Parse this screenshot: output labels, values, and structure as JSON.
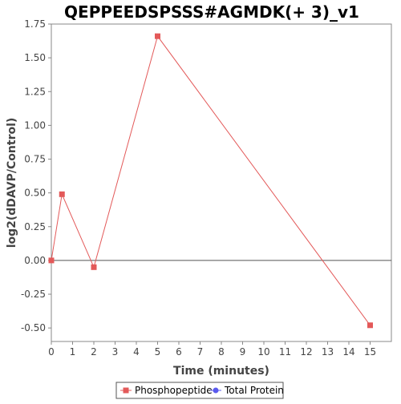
{
  "chart_data": {
    "type": "line",
    "title": "QEPPEEDSPSSS#AGMDK(+ 3)_v1",
    "xlabel": "Time (minutes)",
    "ylabel": "log2(dDAVP/Control)",
    "xlim": [
      0,
      16
    ],
    "ylim": [
      -0.6,
      1.75
    ],
    "xticks": [
      0,
      1,
      2,
      3,
      4,
      5,
      6,
      7,
      8,
      9,
      10,
      11,
      12,
      13,
      14,
      15
    ],
    "yticks": [
      -0.5,
      -0.25,
      0.0,
      0.25,
      0.5,
      0.75,
      1.0,
      1.25,
      1.5,
      1.75
    ],
    "ytick_labels": [
      "-0.50",
      "-0.25",
      "0.00",
      "0.25",
      "0.50",
      "0.75",
      "1.00",
      "1.25",
      "1.50",
      "1.75"
    ],
    "zero_line": true,
    "grid": false,
    "legend_position": "bottom",
    "series": [
      {
        "name": "Phosphopeptide",
        "color": "#e35959",
        "marker": "square",
        "x": [
          0,
          0.5,
          2,
          5,
          15
        ],
        "y": [
          0.0,
          0.49,
          -0.05,
          1.66,
          -0.48
        ]
      },
      {
        "name": "Total Protein",
        "color": "#5a5aee",
        "marker": "circle",
        "x": [],
        "y": []
      }
    ]
  }
}
